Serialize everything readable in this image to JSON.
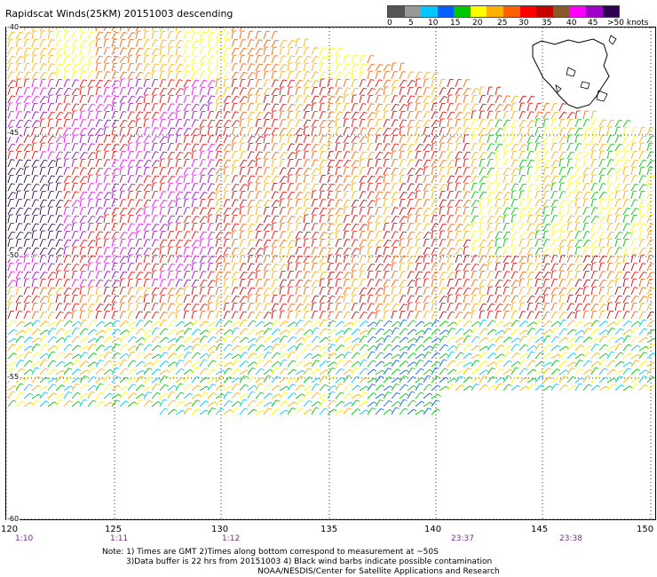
{
  "title": "Rapidscat Winds(25KM) 20151003 descending",
  "legend": {
    "colors": [
      "#555555",
      "#999999",
      "#00c8ff",
      "#0060ff",
      "#00c800",
      "#ffff00",
      "#ffb000",
      "#ff6000",
      "#ff0000",
      "#c80000",
      "#8b5a2b",
      "#ff00ff",
      "#a000c8",
      "#300050"
    ],
    "labels": [
      "0",
      "5",
      "10",
      "15",
      "20",
      "25",
      "30",
      "35",
      "40",
      "45",
      ">50 knots"
    ]
  },
  "lat_labels": [
    "-40",
    "-45",
    "-50",
    "-55",
    "-60"
  ],
  "lon_labels": [
    "120",
    "125",
    "130",
    "135",
    "140",
    "145",
    "150"
  ],
  "time_labels": [
    {
      "text": "1:10",
      "lon": 120.5
    },
    {
      "text": "1:11",
      "lon": 125
    },
    {
      "text": "1:12",
      "lon": 130
    },
    {
      "text": "23:37",
      "lon": 141.2
    },
    {
      "text": "23:38",
      "lon": 146
    }
  ],
  "notes": {
    "line1": "Note: 1) Times are GMT 2)Times along bottom correspond to measurement at ~50S",
    "line2": "3)Data buffer is 22 hrs from 20151003 4) Black wind barbs indicate possible contamination",
    "line3": "NOAA/NESDIS/Center for Satellite Applications and Research"
  },
  "map": {
    "lon_range": [
      120,
      150
    ],
    "lat_range": [
      -40,
      -60
    ],
    "grid": true
  }
}
